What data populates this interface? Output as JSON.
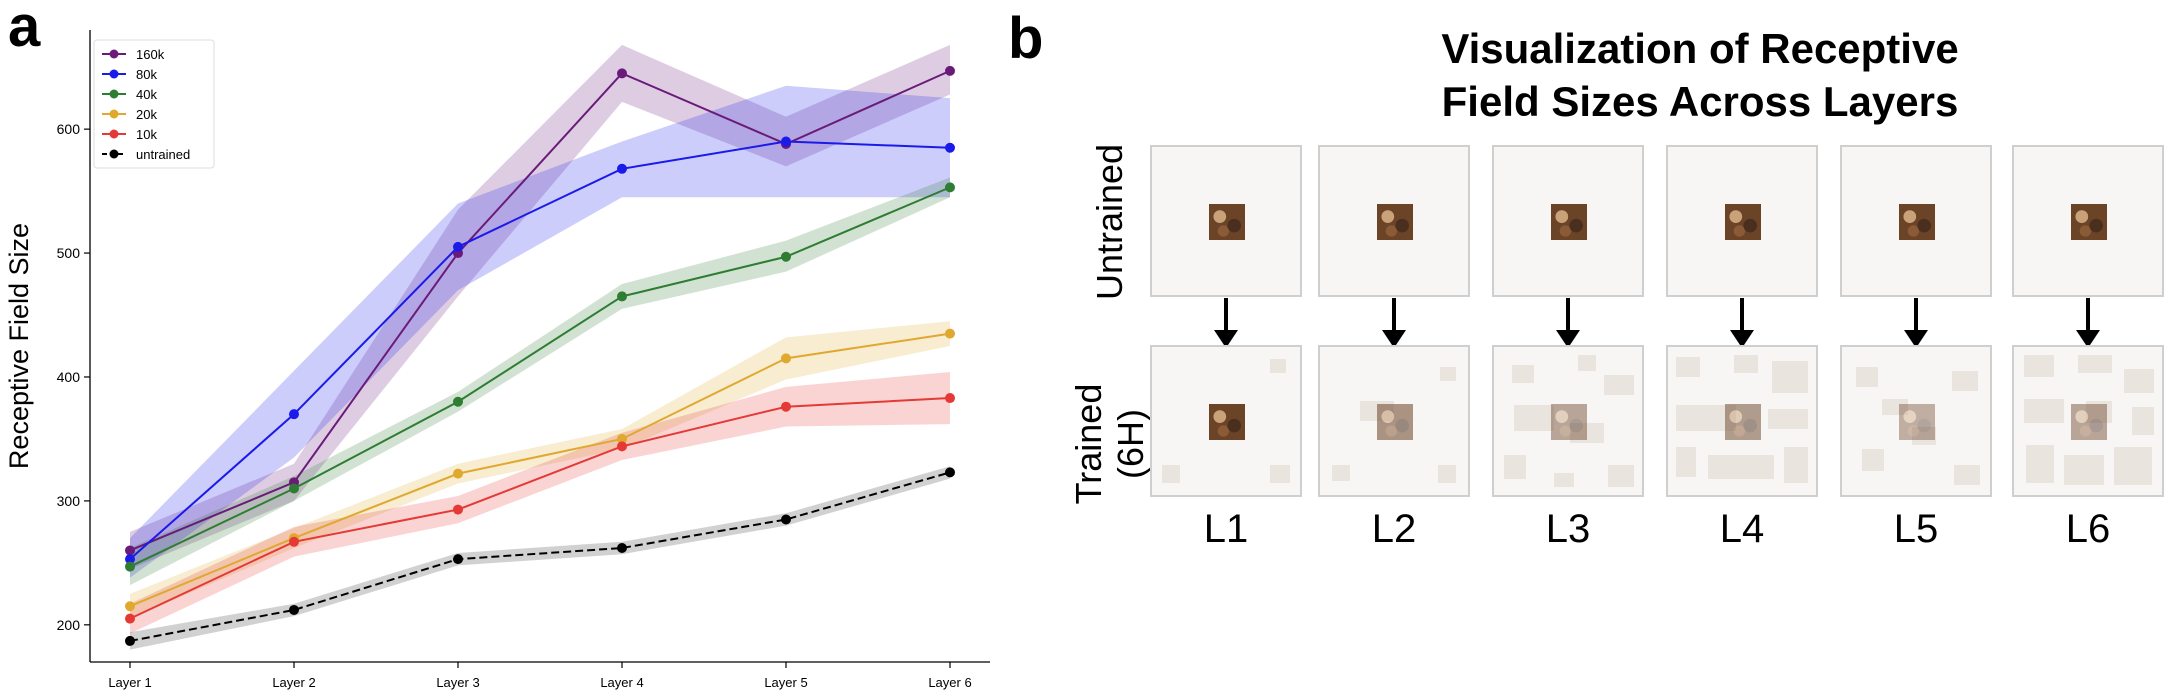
{
  "panels": {
    "a": "a",
    "b": "b"
  },
  "chart_data": {
    "type": "line",
    "title": "",
    "xlabel": "",
    "ylabel": "Receptive Field Size",
    "categories": [
      "Layer 1",
      "Layer 2",
      "Layer 3",
      "Layer 4",
      "Layer 5",
      "Layer 6"
    ],
    "ylim": [
      170,
      680
    ],
    "yticks": [
      200,
      300,
      400,
      500,
      600
    ],
    "grid": false,
    "legend_position": "top-left",
    "series": [
      {
        "name": "160k",
        "color": "#6a1b7a",
        "dashed": false,
        "values": [
          260,
          315,
          500,
          645,
          588,
          647
        ],
        "lower": [
          245,
          300,
          465,
          622,
          570,
          628
        ],
        "upper": [
          275,
          330,
          535,
          668,
          610,
          668
        ]
      },
      {
        "name": "80k",
        "color": "#1a1aeb",
        "dashed": false,
        "values": [
          253,
          370,
          505,
          568,
          590,
          585
        ],
        "lower": [
          238,
          335,
          470,
          545,
          545,
          545
        ],
        "upper": [
          270,
          405,
          540,
          590,
          635,
          625
        ]
      },
      {
        "name": "40k",
        "color": "#2e7d32",
        "dashed": false,
        "values": [
          247,
          310,
          380,
          465,
          497,
          553
        ],
        "lower": [
          232,
          300,
          372,
          455,
          485,
          545
        ],
        "upper": [
          262,
          320,
          388,
          475,
          510,
          561
        ]
      },
      {
        "name": "20k",
        "color": "#e0a82e",
        "dashed": false,
        "values": [
          215,
          270,
          322,
          350,
          415,
          435
        ],
        "lower": [
          205,
          262,
          314,
          342,
          398,
          425
        ],
        "upper": [
          225,
          278,
          330,
          358,
          432,
          445
        ]
      },
      {
        "name": "10k",
        "color": "#e53935",
        "dashed": false,
        "values": [
          205,
          267,
          293,
          344,
          376,
          383
        ],
        "lower": [
          193,
          255,
          282,
          333,
          360,
          362
        ],
        "upper": [
          217,
          279,
          304,
          355,
          392,
          404
        ]
      },
      {
        "name": "untrained",
        "color": "#000000",
        "dashed": true,
        "values": [
          187,
          212,
          253,
          262,
          285,
          323
        ],
        "lower": [
          180,
          207,
          248,
          257,
          280,
          318
        ],
        "upper": [
          194,
          217,
          258,
          267,
          290,
          328
        ]
      }
    ]
  },
  "visualization": {
    "title_line1": "Visualization of Receptive",
    "title_line2": "Field Sizes Across Layers",
    "row_untrained": "Untrained",
    "row_trained_line1": "Trained",
    "row_trained_line2": "(6H)",
    "layers": [
      "L1",
      "L2",
      "L3",
      "L4",
      "L5",
      "L6"
    ]
  }
}
